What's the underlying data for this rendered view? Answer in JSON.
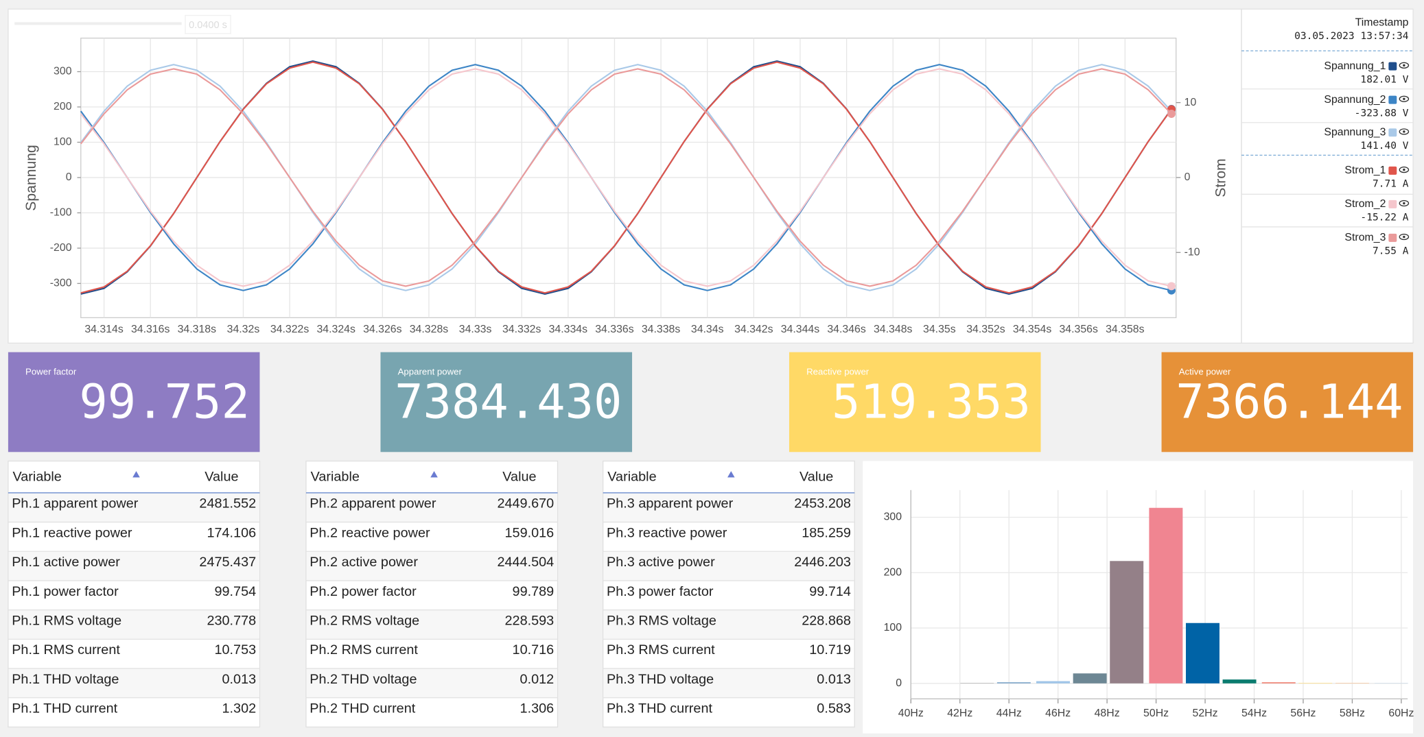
{
  "zoom_label": "0.0400 s",
  "chart_data": [
    {
      "type": "line",
      "y_label": "Spannung",
      "y2_label": "Strom",
      "x": [
        34.313,
        34.314,
        34.315,
        34.316,
        34.317,
        34.318,
        34.319,
        34.32,
        34.321,
        34.322,
        34.323,
        34.324,
        34.325,
        34.326,
        34.327,
        34.328,
        34.329,
        34.33,
        34.331,
        34.332,
        34.333,
        34.334,
        34.335,
        34.336,
        34.337,
        34.338,
        34.339,
        34.34,
        34.341,
        34.342,
        34.343,
        34.344,
        34.345,
        34.346,
        34.347,
        34.348,
        34.349,
        34.35,
        34.351,
        34.352,
        34.353,
        34.354,
        34.355,
        34.356,
        34.357,
        34.358,
        34.359,
        34.36
      ],
      "xlim": [
        34.313,
        34.3602
      ],
      "xticks": [
        {
          "value": 34.314,
          "label": "34.314s"
        },
        {
          "value": 34.316,
          "label": "34.316s"
        },
        {
          "value": 34.318,
          "label": "34.318s"
        },
        {
          "value": 34.32,
          "label": "34.32s"
        },
        {
          "value": 34.322,
          "label": "34.322s"
        },
        {
          "value": 34.324,
          "label": "34.324s"
        },
        {
          "value": 34.326,
          "label": "34.326s"
        },
        {
          "value": 34.328,
          "label": "34.328s"
        },
        {
          "value": 34.33,
          "label": "34.33s"
        },
        {
          "value": 34.332,
          "label": "34.332s"
        },
        {
          "value": 34.334,
          "label": "34.334s"
        },
        {
          "value": 34.336,
          "label": "34.336s"
        },
        {
          "value": 34.338,
          "label": "34.338s"
        },
        {
          "value": 34.34,
          "label": "34.34s"
        },
        {
          "value": 34.342,
          "label": "34.342s"
        },
        {
          "value": 34.344,
          "label": "34.344s"
        },
        {
          "value": 34.346,
          "label": "34.346s"
        },
        {
          "value": 34.348,
          "label": "34.348s"
        },
        {
          "value": 34.35,
          "label": "34.35s"
        },
        {
          "value": 34.352,
          "label": "34.352s"
        },
        {
          "value": 34.354,
          "label": "34.354s"
        },
        {
          "value": 34.356,
          "label": "34.356s"
        },
        {
          "value": 34.358,
          "label": "34.358s"
        }
      ],
      "ylim": [
        -397,
        395
      ],
      "yticks": [
        -300,
        -200,
        -100,
        0,
        100,
        200,
        300
      ],
      "y2lim": [
        -18.7,
        18.6
      ],
      "y2ticks": [
        -10,
        0,
        10
      ],
      "grid": true,
      "series": [
        {
          "name": "Spannung_1",
          "color": "#1f4e8c",
          "values": [
            -330,
            -314,
            -267,
            -194,
            -102,
            0,
            102,
            194,
            267,
            314,
            330,
            314,
            267,
            194,
            102,
            0,
            -102,
            -194,
            -267,
            -314,
            -330,
            -314,
            -267,
            -194,
            -102,
            0,
            102,
            194,
            267,
            314,
            330,
            314,
            267,
            194,
            102,
            0,
            -102,
            -194,
            -267,
            -314,
            -330,
            -314,
            -267,
            -194,
            -102,
            0,
            102,
            194
          ]
        },
        {
          "name": "Spannung_2",
          "color": "#3d85c6",
          "values": [
            188,
            99,
            0,
            -99,
            -188,
            -259,
            -304,
            -320,
            -304,
            -259,
            -188,
            -99,
            0,
            99,
            188,
            259,
            304,
            320,
            304,
            259,
            188,
            99,
            0,
            -99,
            -188,
            -259,
            -304,
            -320,
            -304,
            -259,
            -188,
            -99,
            0,
            99,
            188,
            259,
            304,
            320,
            304,
            259,
            188,
            99,
            0,
            -99,
            -188,
            -259,
            -304,
            -320
          ]
        },
        {
          "name": "Spannung_3",
          "color": "#a9c9e8",
          "values": [
            99,
            188,
            259,
            304,
            320,
            304,
            259,
            188,
            99,
            0,
            -99,
            -188,
            -259,
            -304,
            -320,
            -304,
            -259,
            -188,
            -99,
            0,
            99,
            188,
            259,
            304,
            320,
            304,
            259,
            188,
            99,
            0,
            -99,
            -188,
            -259,
            -304,
            -320,
            -304,
            -259,
            -188,
            -99,
            0,
            99,
            188,
            259,
            304,
            320,
            304,
            259,
            188
          ]
        },
        {
          "name": "Strom_1",
          "color": "#e0554b",
          "axis": "y2",
          "values": [
            -15.4,
            -14.6,
            -12.5,
            -9.1,
            -4.8,
            0,
            4.8,
            9.1,
            12.5,
            14.6,
            15.4,
            14.6,
            12.5,
            9.1,
            4.8,
            0,
            -4.8,
            -9.1,
            -12.5,
            -14.6,
            -15.4,
            -14.6,
            -12.5,
            -9.1,
            -4.8,
            0,
            4.8,
            9.1,
            12.5,
            14.6,
            15.4,
            14.6,
            12.5,
            9.1,
            4.8,
            0,
            -4.8,
            -9.1,
            -12.5,
            -14.6,
            -15.4,
            -14.6,
            -12.5,
            -9.1,
            -4.8,
            0,
            4.8,
            9.1
          ]
        },
        {
          "name": "Strom_2",
          "color": "#f5c6cc",
          "axis": "y2",
          "values": [
            8.5,
            4.5,
            0,
            -4.5,
            -8.5,
            -11.7,
            -13.8,
            -14.5,
            -13.8,
            -11.7,
            -8.5,
            -4.5,
            0,
            4.5,
            8.5,
            11.7,
            13.8,
            14.5,
            13.8,
            11.7,
            8.5,
            4.5,
            0,
            -4.5,
            -8.5,
            -11.7,
            -13.8,
            -14.5,
            -13.8,
            -11.7,
            -8.5,
            -4.5,
            0,
            4.5,
            8.5,
            11.7,
            13.8,
            14.5,
            13.8,
            11.7,
            8.5,
            4.5,
            0,
            -4.5,
            -8.5,
            -11.7,
            -13.8,
            -14.5
          ]
        },
        {
          "name": "Strom_3",
          "color": "#ea9a9a",
          "axis": "y2",
          "values": [
            4.5,
            8.5,
            11.7,
            13.8,
            14.5,
            13.8,
            11.7,
            8.5,
            4.5,
            0,
            -4.5,
            -8.5,
            -11.7,
            -13.8,
            -14.5,
            -13.8,
            -11.7,
            -8.5,
            -4.5,
            0,
            4.5,
            8.5,
            11.7,
            13.8,
            14.5,
            13.8,
            11.7,
            8.5,
            4.5,
            0,
            -4.5,
            -8.5,
            -11.7,
            -13.8,
            -14.5,
            -13.8,
            -11.7,
            -8.5,
            -4.5,
            0,
            4.5,
            8.5,
            11.7,
            13.8,
            14.5,
            13.8,
            11.7,
            8.5
          ]
        }
      ]
    },
    {
      "type": "bar",
      "x": [
        41.2,
        42.7,
        44.2,
        45.8,
        47.3,
        48.8,
        50.4,
        51.9,
        53.4,
        55.0,
        56.5,
        58.0,
        59.6
      ],
      "values": [
        0,
        1,
        2,
        4,
        18,
        221,
        317,
        109,
        7,
        2,
        1,
        1,
        0.5
      ],
      "colors": [
        "#cccccc",
        "#bbbbbb",
        "#7ea6c9",
        "#9fc5e8",
        "#6d8794",
        "#948088",
        "#f08591",
        "#0063a6",
        "#0b7c6f",
        "#f08070",
        "#ffe08a",
        "#f7c8a0",
        "#b5d3ea"
      ],
      "xlim": [
        40,
        60.26
      ],
      "xticks": [
        {
          "value": 40,
          "label": "40Hz"
        },
        {
          "value": 42,
          "label": "42Hz"
        },
        {
          "value": 44,
          "label": "44Hz"
        },
        {
          "value": 46,
          "label": "46Hz"
        },
        {
          "value": 48,
          "label": "48Hz"
        },
        {
          "value": 50,
          "label": "50Hz"
        },
        {
          "value": 52,
          "label": "52Hz"
        },
        {
          "value": 54,
          "label": "54Hz"
        },
        {
          "value": 56,
          "label": "56Hz"
        },
        {
          "value": 58,
          "label": "58Hz"
        },
        {
          "value": 60,
          "label": "60Hz"
        }
      ],
      "ylim": [
        -28,
        349
      ],
      "yticks": [
        0,
        100,
        200,
        300
      ],
      "grid": true
    }
  ],
  "legend_panel": {
    "title": "Timestamp",
    "timestamp": "03.05.2023 13:57:34",
    "readouts": [
      "182.01 V",
      "-323.88 V",
      "141.40 V",
      "7.71 A",
      "-15.22 A",
      "7.55 A"
    ]
  },
  "kpis": [
    {
      "title": "Power factor",
      "value": "99.752",
      "color": "#8e7cc3"
    },
    {
      "title": "Apparent power",
      "value": "7384.430",
      "color": "#78a5b0"
    },
    {
      "title": "Reactive power",
      "value": "519.353",
      "color": "#ffd966"
    },
    {
      "title": "Active power",
      "value": "7366.144",
      "color": "#e69138"
    }
  ],
  "tables": [
    {
      "headers": [
        "Variable",
        "Value"
      ],
      "rows": [
        [
          "Ph.1 apparent power",
          "2481.552"
        ],
        [
          "Ph.1 reactive power",
          "174.106"
        ],
        [
          "Ph.1 active power",
          "2475.437"
        ],
        [
          "Ph.1 power factor",
          "99.754"
        ],
        [
          "Ph.1 RMS voltage",
          "230.778"
        ],
        [
          "Ph.1 RMS current",
          "10.753"
        ],
        [
          "Ph.1 THD voltage",
          "0.013"
        ],
        [
          "Ph.1 THD current",
          "1.302"
        ]
      ]
    },
    {
      "headers": [
        "Variable",
        "Value"
      ],
      "rows": [
        [
          "Ph.2 apparent power",
          "2449.670"
        ],
        [
          "Ph.2 reactive power",
          "159.016"
        ],
        [
          "Ph.2 active power",
          "2444.504"
        ],
        [
          "Ph.2 power factor",
          "99.789"
        ],
        [
          "Ph.2 RMS voltage",
          "228.593"
        ],
        [
          "Ph.2 RMS current",
          "10.716"
        ],
        [
          "Ph.2 THD voltage",
          "0.012"
        ],
        [
          "Ph.2 THD current",
          "1.306"
        ]
      ]
    },
    {
      "headers": [
        "Variable",
        "Value"
      ],
      "rows": [
        [
          "Ph.3 apparent power",
          "2453.208"
        ],
        [
          "Ph.3 reactive power",
          "185.259"
        ],
        [
          "Ph.3 active power",
          "2446.203"
        ],
        [
          "Ph.3 power factor",
          "99.714"
        ],
        [
          "Ph.3 RMS voltage",
          "228.868"
        ],
        [
          "Ph.3 RMS current",
          "10.719"
        ],
        [
          "Ph.3 THD voltage",
          "0.013"
        ],
        [
          "Ph.3 THD current",
          "0.583"
        ]
      ]
    }
  ]
}
